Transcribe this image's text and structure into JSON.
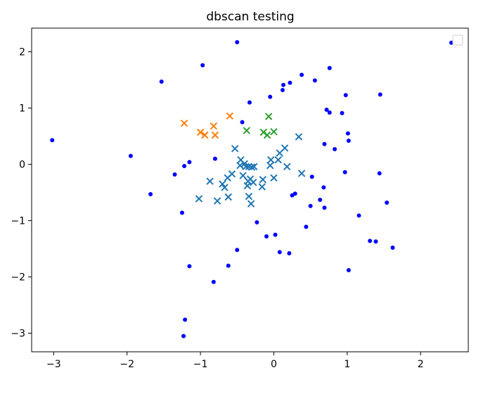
{
  "chart_data": {
    "type": "scatter",
    "title": "dbscan testing",
    "xlabel": "",
    "ylabel": "",
    "xlim": [
      -3.3,
      2.65
    ],
    "ylim": [
      -3.33,
      2.42
    ],
    "xticks": [
      -3,
      -2,
      -1,
      0,
      1,
      2
    ],
    "yticks": [
      -3,
      -2,
      -1,
      0,
      1,
      2
    ],
    "xtick_labels": [
      "−3",
      "−2",
      "−1",
      "0",
      "1",
      "2"
    ],
    "ytick_labels": [
      "−3",
      "−2",
      "−1",
      "0",
      "1",
      "2"
    ],
    "grid": false,
    "legend": {
      "placement": "top-right",
      "entries": []
    },
    "series": [
      {
        "marker": "dot",
        "color": "#0000ff",
        "points": [
          [
            -3.02,
            0.43
          ],
          [
            -1.95,
            0.15
          ],
          [
            -1.68,
            -0.53
          ],
          [
            -1.53,
            1.47
          ],
          [
            -1.22,
            -0.03
          ],
          [
            -1.15,
            0.04
          ],
          [
            -1.35,
            -0.18
          ],
          [
            -1.25,
            -0.86
          ],
          [
            -1.15,
            -1.81
          ],
          [
            -1.21,
            -2.76
          ],
          [
            -1.23,
            -3.05
          ],
          [
            -0.97,
            1.76
          ],
          [
            -0.8,
            0.1
          ],
          [
            -0.82,
            -2.09
          ],
          [
            -0.62,
            -1.8
          ],
          [
            -0.5,
            2.17
          ],
          [
            -0.5,
            -1.52
          ],
          [
            -0.33,
            1.1
          ],
          [
            -0.43,
            0.75
          ],
          [
            -0.23,
            -1.03
          ],
          [
            -0.1,
            -1.28
          ],
          [
            0.02,
            -1.25
          ],
          [
            0.08,
            -1.56
          ],
          [
            0.21,
            -1.58
          ],
          [
            -0.05,
            1.2
          ],
          [
            0.12,
            1.32
          ],
          [
            0.13,
            1.41
          ],
          [
            0.22,
            1.45
          ],
          [
            0.38,
            1.59
          ],
          [
            0.56,
            1.49
          ],
          [
            0.76,
            1.71
          ],
          [
            0.25,
            -0.55
          ],
          [
            0.29,
            -0.52
          ],
          [
            0.44,
            -1.11
          ],
          [
            0.5,
            -0.74
          ],
          [
            0.52,
            -0.22
          ],
          [
            0.63,
            -0.63
          ],
          [
            0.68,
            -0.41
          ],
          [
            0.69,
            -0.77
          ],
          [
            0.69,
            0.36
          ],
          [
            0.72,
            0.97
          ],
          [
            0.76,
            0.92
          ],
          [
            0.83,
            0.27
          ],
          [
            0.93,
            0.91
          ],
          [
            0.98,
            1.23
          ],
          [
            0.97,
            -0.14
          ],
          [
            1.01,
            0.55
          ],
          [
            1.02,
            0.42
          ],
          [
            1.02,
            -1.88
          ],
          [
            1.16,
            -0.91
          ],
          [
            1.31,
            -1.36
          ],
          [
            1.39,
            -1.37
          ],
          [
            1.44,
            -0.16
          ],
          [
            1.45,
            1.24
          ],
          [
            1.54,
            -0.68
          ],
          [
            1.62,
            -1.48
          ],
          [
            2.42,
            2.16
          ]
        ]
      },
      {
        "marker": "x",
        "color": "#1f77b4",
        "points": [
          [
            -1.02,
            -0.61
          ],
          [
            -0.87,
            -0.3
          ],
          [
            -0.77,
            -0.65
          ],
          [
            -0.7,
            -0.35
          ],
          [
            -0.67,
            -0.41
          ],
          [
            -0.63,
            -0.24
          ],
          [
            -0.62,
            -0.58
          ],
          [
            -0.57,
            -0.17
          ],
          [
            -0.53,
            0.28
          ],
          [
            -0.46,
            -0.02
          ],
          [
            -0.45,
            0.08
          ],
          [
            -0.42,
            -0.2
          ],
          [
            -0.4,
            0.01
          ],
          [
            -0.38,
            -0.04
          ],
          [
            -0.35,
            -0.3
          ],
          [
            -0.36,
            -0.38
          ],
          [
            -0.34,
            -0.57
          ],
          [
            -0.34,
            -0.04
          ],
          [
            -0.32,
            -0.26
          ],
          [
            -0.3,
            -0.05
          ],
          [
            -0.31,
            -0.7
          ],
          [
            -0.28,
            -0.32
          ],
          [
            -0.27,
            -0.04
          ],
          [
            -0.16,
            -0.4
          ],
          [
            -0.15,
            -0.27
          ],
          [
            -0.05,
            -0.02
          ],
          [
            -0.04,
            0.08
          ],
          [
            0.0,
            -0.24
          ],
          [
            0.06,
            0.08
          ],
          [
            0.08,
            0.2
          ],
          [
            0.15,
            0.29
          ],
          [
            0.18,
            -0.04
          ],
          [
            0.34,
            0.49
          ],
          [
            0.38,
            -0.16
          ]
        ]
      },
      {
        "marker": "x",
        "color": "#ff7f0e",
        "points": [
          [
            -1.22,
            0.73
          ],
          [
            -1.0,
            0.57
          ],
          [
            -0.94,
            0.52
          ],
          [
            -0.82,
            0.68
          ],
          [
            -0.8,
            0.52
          ],
          [
            -0.6,
            0.86
          ]
        ]
      },
      {
        "marker": "x",
        "color": "#2ca02c",
        "points": [
          [
            -0.37,
            0.6
          ],
          [
            -0.14,
            0.57
          ],
          [
            -0.09,
            0.52
          ],
          [
            -0.07,
            0.85
          ],
          [
            0.0,
            0.58
          ]
        ]
      }
    ]
  }
}
